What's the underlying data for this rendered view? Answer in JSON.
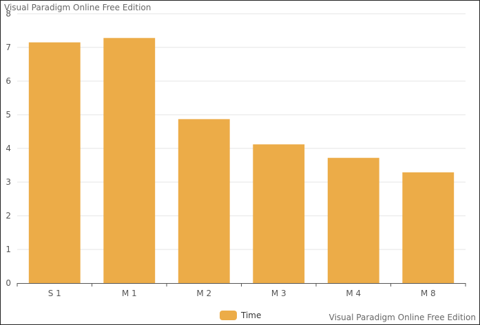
{
  "watermark": {
    "top": "Visual Paradigm Online Free Edition",
    "bottom": "Visual Paradigm Online Free Edition"
  },
  "chart_data": {
    "type": "bar",
    "categories": [
      "S 1",
      "M 1",
      "M 2",
      "M 3",
      "M 4",
      "M 8"
    ],
    "series": [
      {
        "name": "Time",
        "values": [
          7.15,
          7.28,
          4.87,
          4.12,
          3.72,
          3.29
        ]
      }
    ],
    "yticks": [
      "0",
      "1",
      "2",
      "3",
      "4",
      "5",
      "6",
      "7",
      "8"
    ],
    "ylim": [
      0,
      8
    ],
    "grid": true,
    "legend_position": "bottom",
    "bar_color": "#ecac48"
  }
}
